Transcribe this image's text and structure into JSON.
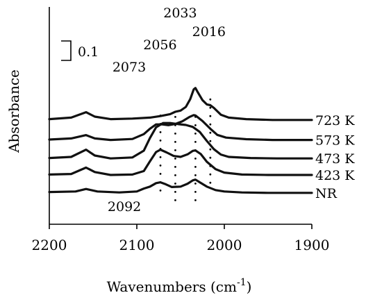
{
  "chart_data": {
    "type": "line",
    "xlabel": "Wavenumbers (cm",
    "xlabel_sup": "-1",
    "xlabel_close": ")",
    "ylabel": "Absorbance",
    "xlim": [
      2200,
      1900
    ],
    "x_reversed": true,
    "xticks": [
      2200,
      2100,
      2000,
      1900
    ],
    "scale_bar": {
      "label": "0.1",
      "value": 0.1
    },
    "annotations": [
      2092,
      2073,
      2056,
      2033,
      2016
    ],
    "series": [
      {
        "name": "NR",
        "offset": 0.0,
        "points": [
          [
            2200,
            0.012
          ],
          [
            2170,
            0.015
          ],
          [
            2158,
            0.028
          ],
          [
            2145,
            0.015
          ],
          [
            2120,
            0.01
          ],
          [
            2100,
            0.015
          ],
          [
            2092,
            0.03
          ],
          [
            2085,
            0.04
          ],
          [
            2078,
            0.058
          ],
          [
            2073,
            0.062
          ],
          [
            2067,
            0.052
          ],
          [
            2060,
            0.038
          ],
          [
            2050,
            0.04
          ],
          [
            2042,
            0.055
          ],
          [
            2036,
            0.072
          ],
          [
            2033,
            0.076
          ],
          [
            2028,
            0.062
          ],
          [
            2020,
            0.04
          ],
          [
            2010,
            0.022
          ],
          [
            2000,
            0.015
          ],
          [
            1980,
            0.01
          ],
          [
            1950,
            0.008
          ],
          [
            1920,
            0.008
          ],
          [
            1900,
            0.008
          ]
        ]
      },
      {
        "name": "423 K",
        "offset": 0.09,
        "points": [
          [
            2200,
            0.012
          ],
          [
            2175,
            0.015
          ],
          [
            2158,
            0.048
          ],
          [
            2148,
            0.025
          ],
          [
            2130,
            0.01
          ],
          [
            2105,
            0.012
          ],
          [
            2092,
            0.03
          ],
          [
            2085,
            0.08
          ],
          [
            2078,
            0.128
          ],
          [
            2073,
            0.14
          ],
          [
            2066,
            0.126
          ],
          [
            2058,
            0.108
          ],
          [
            2050,
            0.103
          ],
          [
            2042,
            0.116
          ],
          [
            2036,
            0.134
          ],
          [
            2033,
            0.136
          ],
          [
            2027,
            0.118
          ],
          [
            2020,
            0.078
          ],
          [
            2010,
            0.04
          ],
          [
            2000,
            0.022
          ],
          [
            1980,
            0.012
          ],
          [
            1950,
            0.01
          ],
          [
            1920,
            0.01
          ],
          [
            1900,
            0.01
          ]
        ]
      },
      {
        "name": "473 K",
        "offset": 0.175,
        "points": [
          [
            2200,
            0.012
          ],
          [
            2175,
            0.018
          ],
          [
            2158,
            0.055
          ],
          [
            2148,
            0.025
          ],
          [
            2130,
            0.01
          ],
          [
            2105,
            0.015
          ],
          [
            2092,
            0.05
          ],
          [
            2085,
            0.115
          ],
          [
            2078,
            0.17
          ],
          [
            2070,
            0.192
          ],
          [
            2062,
            0.192
          ],
          [
            2052,
            0.186
          ],
          [
            2044,
            0.182
          ],
          [
            2036,
            0.172
          ],
          [
            2028,
            0.146
          ],
          [
            2020,
            0.1
          ],
          [
            2012,
            0.058
          ],
          [
            2004,
            0.03
          ],
          [
            1995,
            0.018
          ],
          [
            1970,
            0.012
          ],
          [
            1940,
            0.01
          ],
          [
            1900,
            0.01
          ]
        ]
      },
      {
        "name": "573 K",
        "offset": 0.27,
        "points": [
          [
            2200,
            0.012
          ],
          [
            2175,
            0.018
          ],
          [
            2158,
            0.035
          ],
          [
            2148,
            0.018
          ],
          [
            2130,
            0.01
          ],
          [
            2105,
            0.015
          ],
          [
            2092,
            0.04
          ],
          [
            2085,
            0.068
          ],
          [
            2078,
            0.09
          ],
          [
            2071,
            0.09
          ],
          [
            2064,
            0.086
          ],
          [
            2056,
            0.092
          ],
          [
            2048,
            0.106
          ],
          [
            2040,
            0.128
          ],
          [
            2035,
            0.138
          ],
          [
            2033,
            0.136
          ],
          [
            2025,
            0.108
          ],
          [
            2016,
            0.068
          ],
          [
            2008,
            0.036
          ],
          [
            1998,
            0.022
          ],
          [
            1975,
            0.014
          ],
          [
            1945,
            0.01
          ],
          [
            1900,
            0.01
          ]
        ]
      },
      {
        "name": "723 K",
        "offset": 0.375,
        "points": [
          [
            2200,
            0.012
          ],
          [
            2175,
            0.02
          ],
          [
            2158,
            0.048
          ],
          [
            2148,
            0.025
          ],
          [
            2130,
            0.012
          ],
          [
            2105,
            0.015
          ],
          [
            2085,
            0.02
          ],
          [
            2073,
            0.028
          ],
          [
            2062,
            0.038
          ],
          [
            2056,
            0.05
          ],
          [
            2050,
            0.056
          ],
          [
            2044,
            0.075
          ],
          [
            2039,
            0.115
          ],
          [
            2035,
            0.165
          ],
          [
            2033,
            0.172
          ],
          [
            2030,
            0.148
          ],
          [
            2025,
            0.11
          ],
          [
            2020,
            0.088
          ],
          [
            2016,
            0.084
          ],
          [
            2012,
            0.07
          ],
          [
            2004,
            0.035
          ],
          [
            1995,
            0.02
          ],
          [
            1975,
            0.012
          ],
          [
            1945,
            0.008
          ],
          [
            1900,
            0.008
          ]
        ]
      }
    ]
  }
}
